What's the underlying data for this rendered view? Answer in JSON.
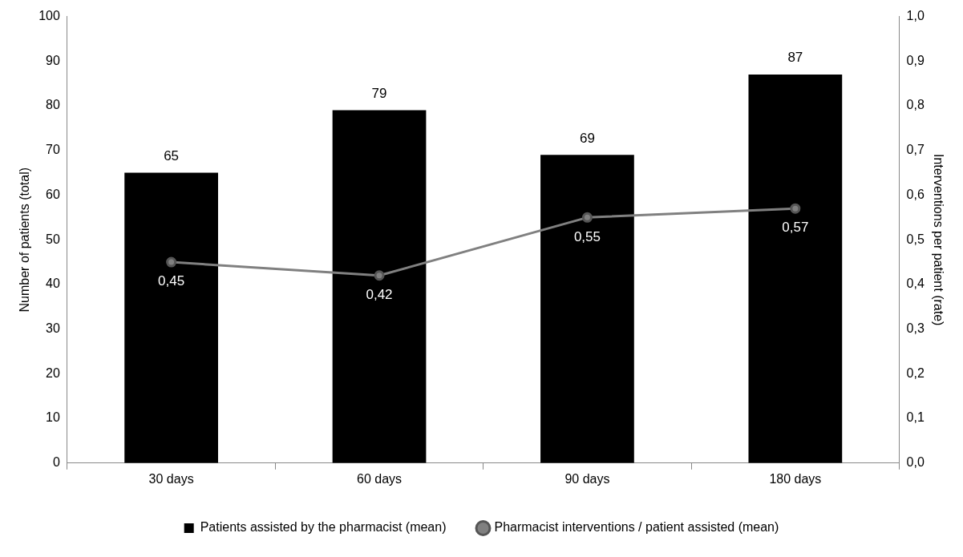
{
  "chart_data": {
    "type": "bar",
    "categories": [
      "30 days",
      "60 days",
      "90 days",
      "180 days"
    ],
    "ylabel": "Number of patients (total)",
    "y2label": "Interventions per patient (rate)",
    "series": [
      {
        "name": "Patients assisted by the pharmacist (mean)",
        "color": "#000000",
        "values": [
          65,
          79,
          69,
          87
        ],
        "value_labels": [
          "65",
          "79",
          "69",
          "87"
        ]
      },
      {
        "name": "Pharmacist interventions / patient assisted (mean)",
        "type": "line",
        "axis": "y2",
        "color": "#808080",
        "marker": "circle",
        "values": [
          0.45,
          0.42,
          0.55,
          0.57
        ],
        "value_labels": [
          "0,45",
          "0,42",
          "0,55",
          "0,57"
        ]
      }
    ],
    "ylim": [
      0,
      100
    ],
    "yticks": [
      0,
      10,
      20,
      30,
      40,
      50,
      60,
      70,
      80,
      90,
      100
    ],
    "y2lim": [
      0,
      1
    ],
    "y2ticks": [
      {
        "value": 0,
        "label": "0,0"
      },
      {
        "value": 0.1,
        "label": "0,1"
      },
      {
        "value": 0.2,
        "label": "0,2"
      },
      {
        "value": 0.3,
        "label": "0,3"
      },
      {
        "value": 0.4,
        "label": "0,4"
      },
      {
        "value": 0.5,
        "label": "0,5"
      },
      {
        "value": 0.6,
        "label": "0,6"
      },
      {
        "value": 0.7,
        "label": "0,7"
      },
      {
        "value": 0.8,
        "label": "0,8"
      },
      {
        "value": 0.9,
        "label": "0,9"
      },
      {
        "value": 1,
        "label": "1,0"
      }
    ],
    "grid": false,
    "legend": "bottom"
  }
}
